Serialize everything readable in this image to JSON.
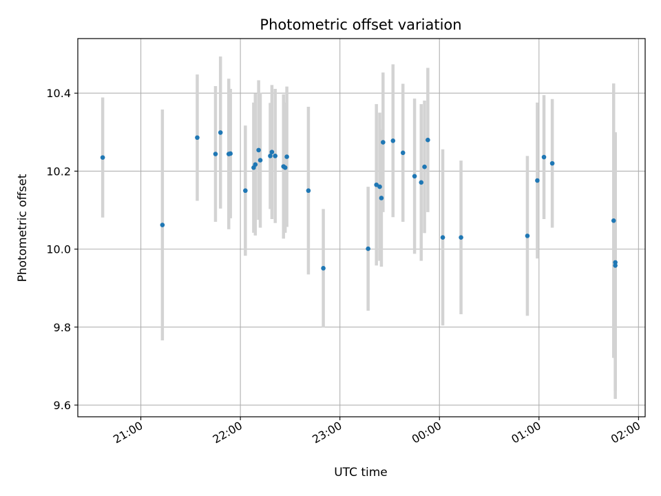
{
  "chart_data": {
    "type": "scatter",
    "title": "Photometric offset variation",
    "xlabel": "UTC time",
    "ylabel": "Photometric offset",
    "x_unit": "UTC HH:MM, hours after midnight exceed 24",
    "xlim": [
      "20:22",
      "26:04"
    ],
    "ylim": [
      9.57,
      10.54
    ],
    "x_ticks": [
      "21:00",
      "22:00",
      "23:00",
      "00:00",
      "01:00",
      "02:00"
    ],
    "y_ticks": [
      "9.6",
      "9.8",
      "10.0",
      "10.2",
      "10.4"
    ],
    "grid": true,
    "marker_color": "#1f77b4",
    "errorbar_color": "#d3d3d3",
    "series": [
      {
        "points": [
          {
            "x": "20:37",
            "y": 10.235,
            "ylow": 10.081,
            "yhigh": 10.389
          },
          {
            "x": "21:13",
            "y": 10.062,
            "ylow": 9.766,
            "yhigh": 10.358
          },
          {
            "x": "21:34",
            "y": 10.286,
            "ylow": 10.124,
            "yhigh": 10.448
          },
          {
            "x": "21:45",
            "y": 10.244,
            "ylow": 10.07,
            "yhigh": 10.418
          },
          {
            "x": "21:48",
            "y": 10.299,
            "ylow": 10.104,
            "yhigh": 10.494
          },
          {
            "x": "21:53",
            "y": 10.244,
            "ylow": 10.051,
            "yhigh": 10.437
          },
          {
            "x": "21:54",
            "y": 10.245,
            "ylow": 10.079,
            "yhigh": 10.411
          },
          {
            "x": "22:03",
            "y": 10.15,
            "ylow": 9.983,
            "yhigh": 10.317
          },
          {
            "x": "22:08",
            "y": 10.209,
            "ylow": 10.042,
            "yhigh": 10.376
          },
          {
            "x": "22:09",
            "y": 10.217,
            "ylow": 10.035,
            "yhigh": 10.399
          },
          {
            "x": "22:11",
            "y": 10.254,
            "ylow": 10.075,
            "yhigh": 10.433
          },
          {
            "x": "22:12",
            "y": 10.228,
            "ylow": 10.055,
            "yhigh": 10.401
          },
          {
            "x": "22:18",
            "y": 10.239,
            "ylow": 10.103,
            "yhigh": 10.375
          },
          {
            "x": "22:19",
            "y": 10.249,
            "ylow": 10.077,
            "yhigh": 10.421
          },
          {
            "x": "22:21",
            "y": 10.239,
            "ylow": 10.067,
            "yhigh": 10.411
          },
          {
            "x": "22:26",
            "y": 10.212,
            "ylow": 10.027,
            "yhigh": 10.397
          },
          {
            "x": "22:27",
            "y": 10.209,
            "ylow": 10.042,
            "yhigh": 10.376
          },
          {
            "x": "22:28",
            "y": 10.237,
            "ylow": 10.057,
            "yhigh": 10.417
          },
          {
            "x": "22:41",
            "y": 10.15,
            "ylow": 9.935,
            "yhigh": 10.365
          },
          {
            "x": "22:50",
            "y": 9.951,
            "ylow": 9.799,
            "yhigh": 10.103
          },
          {
            "x": "23:17",
            "y": 10.001,
            "ylow": 9.842,
            "yhigh": 10.16
          },
          {
            "x": "23:22",
            "y": 10.165,
            "ylow": 9.958,
            "yhigh": 10.372
          },
          {
            "x": "23:24",
            "y": 10.16,
            "ylow": 9.97,
            "yhigh": 10.35
          },
          {
            "x": "23:25",
            "y": 10.131,
            "ylow": 9.955,
            "yhigh": 10.307
          },
          {
            "x": "23:26",
            "y": 10.274,
            "ylow": 10.095,
            "yhigh": 10.453
          },
          {
            "x": "23:32",
            "y": 10.278,
            "ylow": 10.082,
            "yhigh": 10.474
          },
          {
            "x": "23:38",
            "y": 10.247,
            "ylow": 10.07,
            "yhigh": 10.424
          },
          {
            "x": "23:45",
            "y": 10.187,
            "ylow": 9.988,
            "yhigh": 10.386
          },
          {
            "x": "23:49",
            "y": 10.171,
            "ylow": 9.97,
            "yhigh": 10.372
          },
          {
            "x": "23:51",
            "y": 10.211,
            "ylow": 10.041,
            "yhigh": 10.381
          },
          {
            "x": "23:53",
            "y": 10.28,
            "ylow": 10.095,
            "yhigh": 10.465
          },
          {
            "x": "24:02",
            "y": 10.03,
            "ylow": 9.804,
            "yhigh": 10.256
          },
          {
            "x": "24:13",
            "y": 10.03,
            "ylow": 9.833,
            "yhigh": 10.227
          },
          {
            "x": "24:53",
            "y": 10.034,
            "ylow": 9.829,
            "yhigh": 10.239
          },
          {
            "x": "24:59",
            "y": 10.176,
            "ylow": 9.976,
            "yhigh": 10.376
          },
          {
            "x": "25:03",
            "y": 10.236,
            "ylow": 10.077,
            "yhigh": 10.395
          },
          {
            "x": "25:08",
            "y": 10.22,
            "ylow": 10.055,
            "yhigh": 10.385
          },
          {
            "x": "25:45",
            "y": 10.073,
            "ylow": 9.721,
            "yhigh": 10.425
          },
          {
            "x": "25:46",
            "y": 9.966,
            "ylow": 9.636,
            "yhigh": 10.296
          },
          {
            "x": "25:46",
            "y": 9.958,
            "ylow": 9.616,
            "yhigh": 10.3
          }
        ]
      }
    ]
  }
}
